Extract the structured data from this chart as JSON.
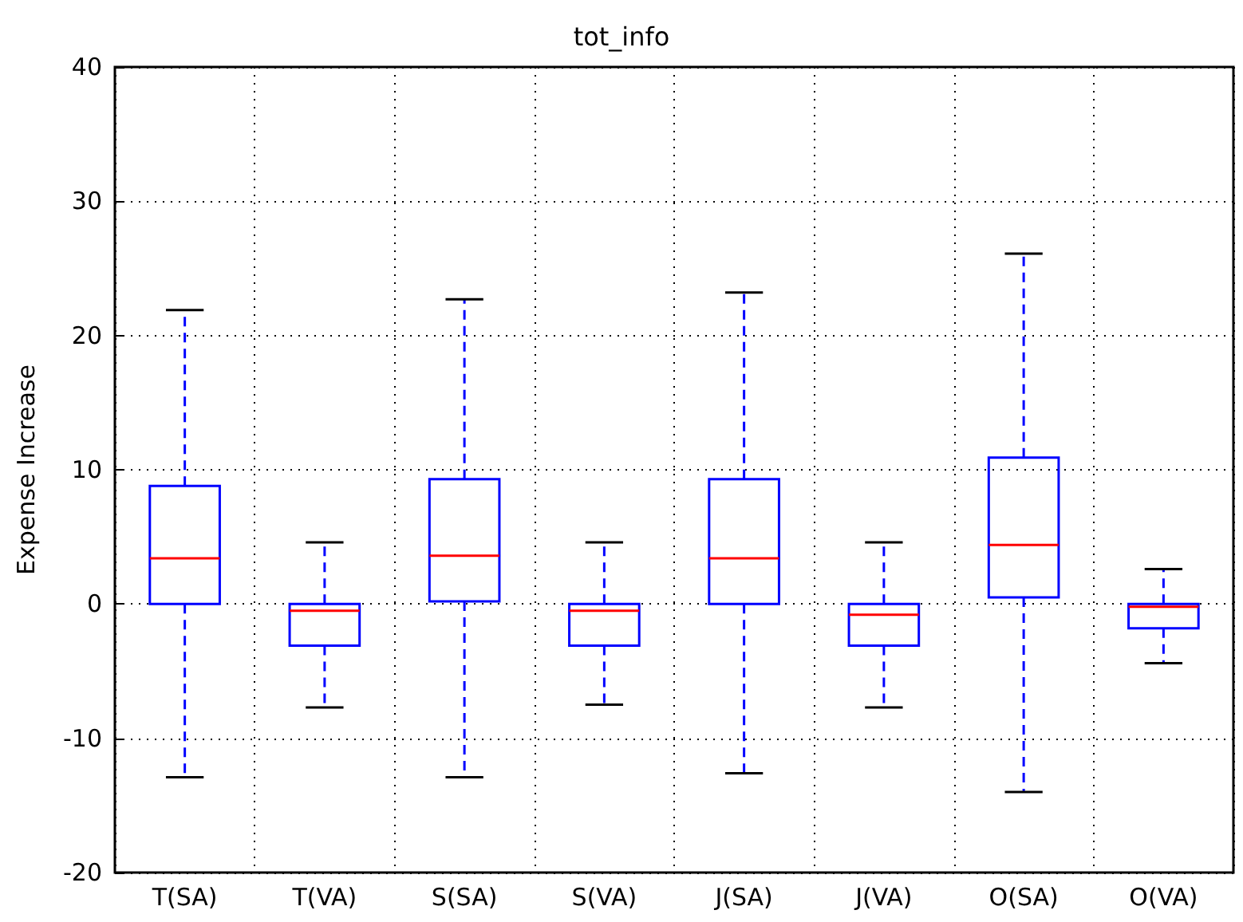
{
  "chart_data": {
    "type": "box",
    "title": "tot_info",
    "ylabel": "Expense Increase",
    "categories": [
      "T(SA)",
      "T(VA)",
      "S(SA)",
      "S(VA)",
      "J(SA)",
      "J(VA)",
      "O(SA)",
      "O(VA)"
    ],
    "series": [
      {
        "color": "#0000ff",
        "line_style": "dashed",
        "boxes": [
          {
            "low": -12.9,
            "q1": 0,
            "median": 3.4,
            "q3": 8.8,
            "high": 21.9
          },
          {
            "low": -7.7,
            "q1": -3.1,
            "median": -0.5,
            "q3": 0,
            "high": 4.6
          },
          {
            "low": -12.9,
            "q1": 0.2,
            "median": 3.6,
            "q3": 9.3,
            "high": 22.7
          },
          {
            "low": -7.5,
            "q1": -3.1,
            "median": -0.5,
            "q3": 0,
            "high": 4.6
          },
          {
            "low": -12.6,
            "q1": 0,
            "median": 3.4,
            "q3": 9.3,
            "high": 23.2
          },
          {
            "low": -7.7,
            "q1": -3.1,
            "median": -0.8,
            "q3": 0,
            "high": 4.6
          },
          {
            "low": -14.0,
            "q1": 0.5,
            "median": 4.4,
            "q3": 10.9,
            "high": 26.1
          },
          {
            "low": -4.4,
            "q1": -1.8,
            "median": -0.2,
            "q3": 0,
            "high": 2.6
          }
        ]
      }
    ],
    "ylim": [
      -20,
      40
    ],
    "yticks": [
      -20,
      -10,
      0,
      10,
      20,
      30,
      40
    ],
    "grid": true
  }
}
